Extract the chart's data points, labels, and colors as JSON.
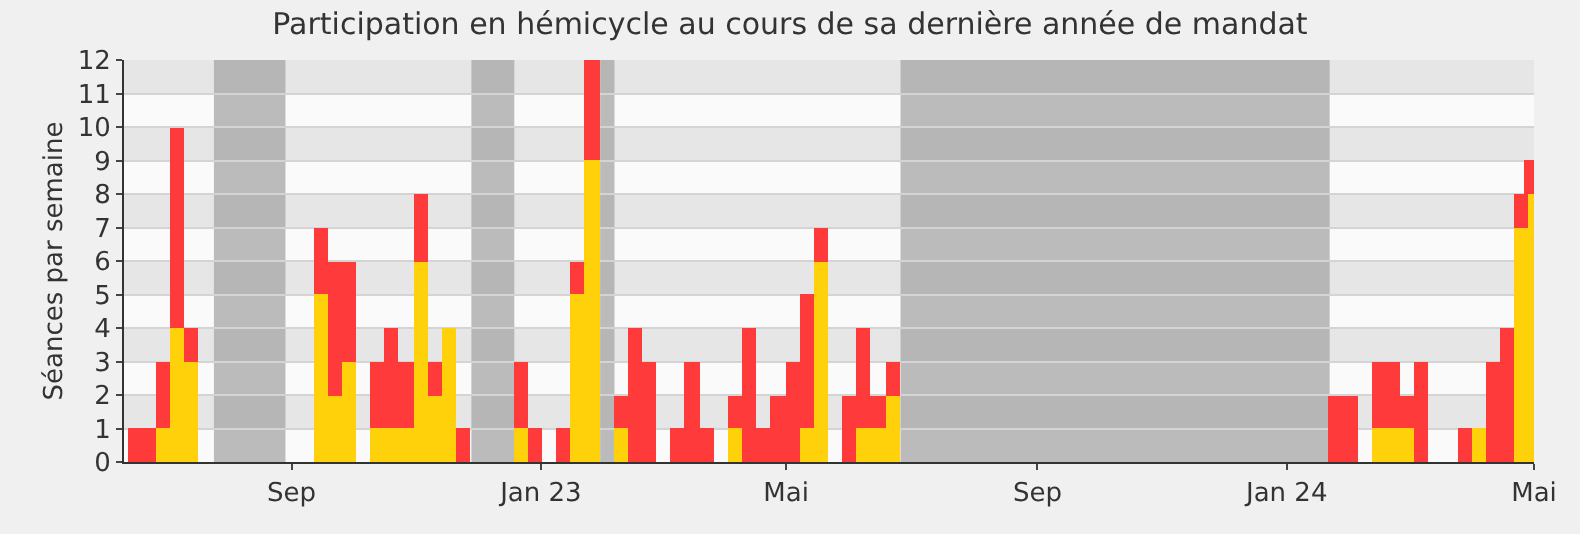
{
  "chart_data": {
    "type": "bar",
    "stacked": true,
    "title": "Participation en hémicycle au cours de sa dernière année de mandat",
    "ylabel": "Séances par semaine",
    "x": [
      "2022-06-16",
      "2022-06-23",
      "2022-06-30",
      "2022-07-07",
      "2022-07-14",
      "2022-09-15",
      "2022-09-22",
      "2022-09-29",
      "2022-10-13",
      "2022-10-20",
      "2022-10-27",
      "2022-11-03",
      "2022-11-10",
      "2022-11-17",
      "2022-11-24",
      "2022-12-22",
      "2022-12-29",
      "2023-01-12",
      "2023-01-19",
      "2023-01-26",
      "2023-02-09",
      "2023-02-16",
      "2023-02-23",
      "2023-03-09",
      "2023-03-16",
      "2023-03-23",
      "2023-04-06",
      "2023-04-13",
      "2023-04-20",
      "2023-04-27",
      "2023-05-04",
      "2023-05-11",
      "2023-05-18",
      "2023-06-01",
      "2023-06-08",
      "2023-06-15",
      "2023-06-22",
      "2024-01-25",
      "2024-02-01",
      "2024-02-15",
      "2024-02-22",
      "2024-02-29",
      "2024-03-07",
      "2024-03-28",
      "2024-04-04",
      "2024-04-11",
      "2024-04-18",
      "2024-04-25",
      "2024-04-30"
    ],
    "series": [
      {
        "color": "#ffd10a",
        "values": [
          0,
          0,
          1,
          4,
          3,
          5,
          2,
          3,
          1,
          1,
          1,
          6,
          2,
          4,
          0,
          1,
          0,
          0,
          5,
          9,
          1,
          0,
          0,
          0,
          0,
          0,
          1,
          0,
          0,
          0,
          0,
          1,
          6,
          0,
          1,
          1,
          2,
          0,
          0,
          1,
          1,
          1,
          0,
          0,
          1,
          0,
          0,
          7,
          8
        ]
      },
      {
        "color": "#ff3a3a",
        "values": [
          1,
          1,
          2,
          6,
          1,
          2,
          4,
          3,
          2,
          3,
          2,
          2,
          1,
          0,
          1,
          2,
          1,
          1,
          1,
          3,
          1,
          4,
          3,
          1,
          3,
          1,
          1,
          4,
          1,
          2,
          3,
          4,
          1,
          2,
          3,
          1,
          1,
          2,
          2,
          2,
          2,
          1,
          3,
          1,
          0,
          3,
          4,
          1,
          1
        ]
      }
    ],
    "xlim": [
      "2022-06-11",
      "2024-05-01"
    ],
    "xticks": [
      {
        "value": "2022-09-01",
        "label": "Sep"
      },
      {
        "value": "2023-01-01",
        "label": "Jan 23"
      },
      {
        "value": "2023-05-01",
        "label": "Mai"
      },
      {
        "value": "2023-09-01",
        "label": "Sep"
      },
      {
        "value": "2024-01-01",
        "label": "Jan 24"
      },
      {
        "value": "2024-05-01",
        "label": "Mai"
      }
    ],
    "ylim": [
      0,
      12
    ],
    "yticks": [
      0,
      1,
      2,
      3,
      4,
      5,
      6,
      7,
      8,
      9,
      10,
      11,
      12
    ],
    "grid": "y",
    "bands": [
      {
        "axis": "x",
        "from": "2022-07-25",
        "to": "2022-08-29",
        "color": "#a6a6a6"
      },
      {
        "axis": "x",
        "from": "2022-11-28",
        "to": "2022-12-19",
        "color": "#a6a6a6"
      },
      {
        "axis": "x",
        "from": "2023-01-30",
        "to": "2023-02-06",
        "color": "#a6a6a6"
      },
      {
        "axis": "x",
        "from": "2023-06-26",
        "to": "2024-01-22",
        "color": "#a6a6a6"
      }
    ]
  }
}
